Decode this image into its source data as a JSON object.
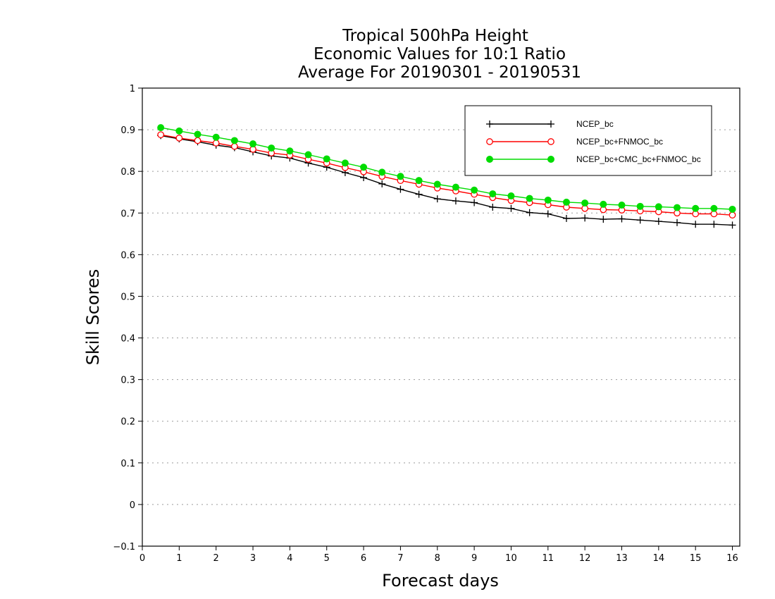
{
  "chart_data": {
    "type": "line",
    "title": [
      "Tropical 500hPa Height",
      "Economic Values for 10:1 Ratio",
      "Average For 20190301 - 20190531"
    ],
    "xlabel": "Forecast days",
    "ylabel": "Skill Scores",
    "xlim": [
      0,
      16.2
    ],
    "ylim": [
      -0.1,
      1
    ],
    "xticks": [
      "0",
      "1",
      "2",
      "3",
      "4",
      "5",
      "6",
      "7",
      "8",
      "9",
      "10",
      "11",
      "12",
      "13",
      "14",
      "15",
      "16"
    ],
    "yticks": [
      "−0.1",
      "0",
      "0.1",
      "0.2",
      "0.3",
      "0.4",
      "0.5",
      "0.6",
      "0.7",
      "0.8",
      "0.9",
      "1"
    ],
    "grid": true,
    "legend_position": "top-right",
    "x": [
      0.5,
      1,
      1.5,
      2,
      2.5,
      3,
      3.5,
      4,
      4.5,
      5,
      5.5,
      6,
      6.5,
      7,
      7.5,
      8,
      8.5,
      9,
      9.5,
      10,
      10.5,
      11,
      11.5,
      12,
      12.5,
      13,
      13.5,
      14,
      14.5,
      15,
      15.5,
      16
    ],
    "series": [
      {
        "name": "NCEP_bc",
        "color": "#000000",
        "marker": "plus",
        "values": [
          0.886,
          0.878,
          0.871,
          0.863,
          0.857,
          0.847,
          0.837,
          0.832,
          0.82,
          0.81,
          0.797,
          0.785,
          0.77,
          0.757,
          0.745,
          0.734,
          0.729,
          0.725,
          0.714,
          0.711,
          0.701,
          0.698,
          0.687,
          0.688,
          0.685,
          0.686,
          0.683,
          0.68,
          0.677,
          0.673,
          0.673,
          0.671
        ]
      },
      {
        "name": "NCEP_bc+FNMOC_bc",
        "color": "#ff0000",
        "marker": "open-circle",
        "values": [
          0.888,
          0.88,
          0.874,
          0.868,
          0.86,
          0.853,
          0.844,
          0.839,
          0.829,
          0.82,
          0.809,
          0.799,
          0.788,
          0.778,
          0.769,
          0.76,
          0.753,
          0.745,
          0.737,
          0.73,
          0.725,
          0.72,
          0.714,
          0.711,
          0.708,
          0.707,
          0.705,
          0.703,
          0.7,
          0.698,
          0.698,
          0.695
        ]
      },
      {
        "name": "NCEP_bc+CMC_bc+FNMOC_bc",
        "color": "#00dc00",
        "marker": "filled-circle",
        "values": [
          0.905,
          0.897,
          0.889,
          0.882,
          0.874,
          0.866,
          0.856,
          0.849,
          0.84,
          0.83,
          0.82,
          0.81,
          0.798,
          0.788,
          0.778,
          0.769,
          0.762,
          0.755,
          0.746,
          0.741,
          0.735,
          0.731,
          0.726,
          0.724,
          0.721,
          0.719,
          0.716,
          0.715,
          0.713,
          0.711,
          0.711,
          0.709
        ]
      }
    ]
  }
}
